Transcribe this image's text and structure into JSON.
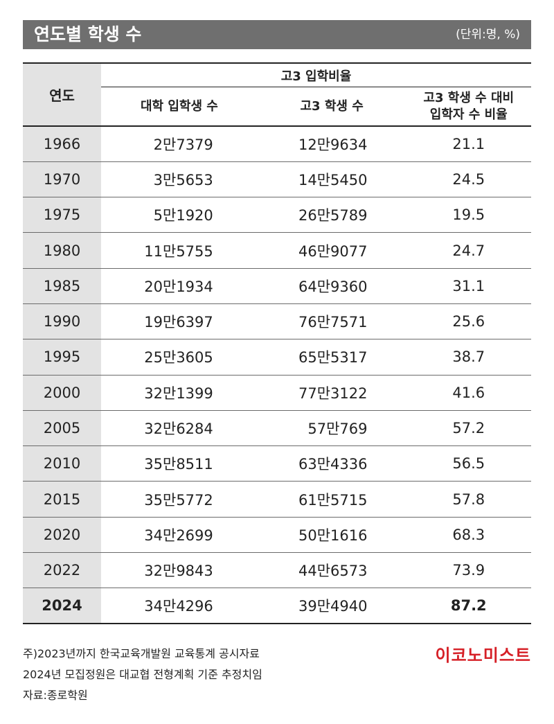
{
  "header": {
    "title": "연도별 학생 수",
    "unit": "(단위:명, %)"
  },
  "table": {
    "year_header": "연도",
    "group_header": "고3 입학비율",
    "col1_header": "대학 입학생 수",
    "col2_header": "고3 학생 수",
    "col3_header_line1": "고3 학생 수 대비",
    "col3_header_line2": "입학자 수 비율",
    "rows": [
      {
        "year": "1966",
        "entrants": "2만7379",
        "seniors": "12만9634",
        "ratio": "21.1"
      },
      {
        "year": "1970",
        "entrants": "3만5653",
        "seniors": "14만5450",
        "ratio": "24.5"
      },
      {
        "year": "1975",
        "entrants": "5만1920",
        "seniors": "26만5789",
        "ratio": "19.5"
      },
      {
        "year": "1980",
        "entrants": "11만5755",
        "seniors": "46만9077",
        "ratio": "24.7"
      },
      {
        "year": "1985",
        "entrants": "20만1934",
        "seniors": "64만9360",
        "ratio": "31.1"
      },
      {
        "year": "1990",
        "entrants": "19만6397",
        "seniors": "76만7571",
        "ratio": "25.6"
      },
      {
        "year": "1995",
        "entrants": "25만3605",
        "seniors": "65만5317",
        "ratio": "38.7"
      },
      {
        "year": "2000",
        "entrants": "32만1399",
        "seniors": "77만3122",
        "ratio": "41.6"
      },
      {
        "year": "2005",
        "entrants": "32만6284",
        "seniors": "57만769",
        "ratio": "57.2"
      },
      {
        "year": "2010",
        "entrants": "35만8511",
        "seniors": "63만4336",
        "ratio": "56.5"
      },
      {
        "year": "2015",
        "entrants": "35만5772",
        "seniors": "61만5715",
        "ratio": "57.8"
      },
      {
        "year": "2020",
        "entrants": "34만2699",
        "seniors": "50만1616",
        "ratio": "68.3"
      },
      {
        "year": "2022",
        "entrants": "32만9843",
        "seniors": "44만6573",
        "ratio": "73.9"
      },
      {
        "year": "2024",
        "entrants": "34만4296",
        "seniors": "39만4940",
        "ratio": "87.2"
      }
    ]
  },
  "notes": {
    "line1": "주)2023년까지 한국교육개발원 교육통계 공시자료",
    "line2": "2024년 모집정원은 대교협 전형계획 기준 추정치임",
    "line3": "자료:종로학원"
  },
  "logo": {
    "text": "이코노미스트",
    "color": "#d62027"
  }
}
